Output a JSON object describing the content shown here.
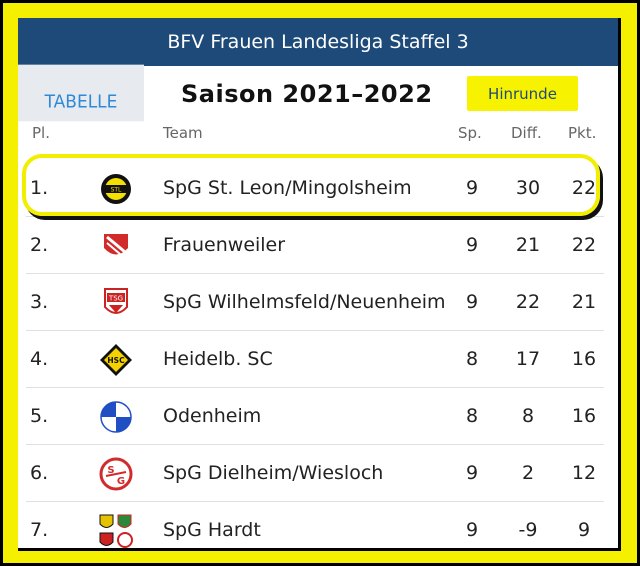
{
  "header": {
    "title": "BFV Frauen Landesliga Staffel 3"
  },
  "tabs": {
    "tabelle": "TABELLE"
  },
  "season": {
    "label": "Saison 2021–2022"
  },
  "hinrunde_button": {
    "label": "Hinrunde"
  },
  "columns": {
    "pl": "Pl.",
    "team": "Team",
    "sp": "Sp.",
    "diff": "Diff.",
    "pkt": "Pkt."
  },
  "colors": {
    "header_bg": "#1e4a7a",
    "highlight": "#f2ee00",
    "frame": "#f5f000"
  },
  "table": {
    "rows": [
      {
        "pl": "1.",
        "team": "SpG St. Leon/Mingolsheim",
        "sp": "9",
        "diff": "30",
        "pkt": "22",
        "logo": "st-leon-logo-icon"
      },
      {
        "pl": "2.",
        "team": "Frauenweiler",
        "sp": "9",
        "diff": "21",
        "pkt": "22",
        "logo": "frauenweiler-logo-icon"
      },
      {
        "pl": "3.",
        "team": "SpG Wilhelmsfeld/Neuenheim",
        "sp": "9",
        "diff": "22",
        "pkt": "21",
        "logo": "tsg-logo-icon"
      },
      {
        "pl": "4.",
        "team": "Heidelb. SC",
        "sp": "8",
        "diff": "17",
        "pkt": "16",
        "logo": "hsc-logo-icon"
      },
      {
        "pl": "5.",
        "team": "Odenheim",
        "sp": "8",
        "diff": "8",
        "pkt": "16",
        "logo": "fco-1910-logo-icon"
      },
      {
        "pl": "6.",
        "team": "SpG Dielheim/Wiesloch",
        "sp": "9",
        "diff": "2",
        "pkt": "12",
        "logo": "sg-logo-icon"
      },
      {
        "pl": "7.",
        "team": "SpG Hardt",
        "sp": "9",
        "diff": "-9",
        "pkt": "9",
        "logo": "hardt-logos-icon"
      }
    ]
  }
}
